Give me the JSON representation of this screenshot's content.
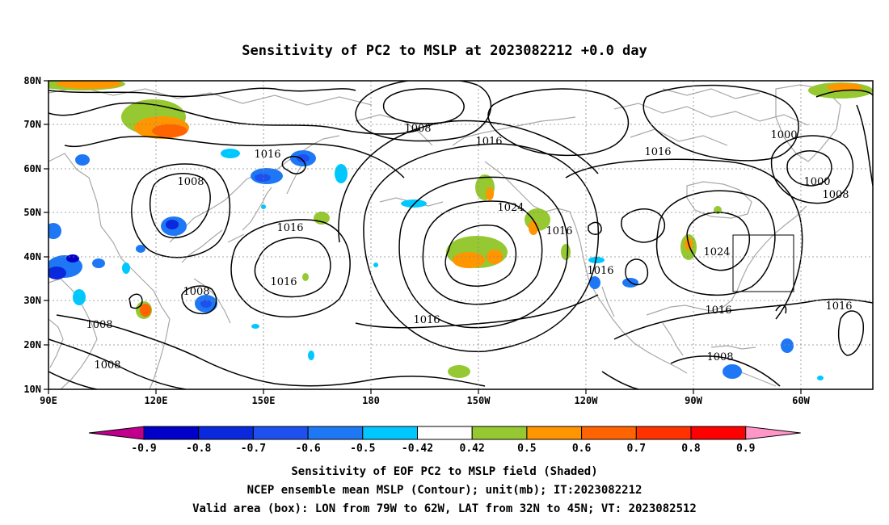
{
  "title": "Sensitivity of PC2 to MSLP at 2023082212 +0.0 day",
  "lat_labels": [
    "80N",
    "70N",
    "60N",
    "50N",
    "40N",
    "30N",
    "20N",
    "10N"
  ],
  "lon_labels": [
    "90E",
    "120E",
    "150E",
    "180",
    "150W",
    "120W",
    "90W",
    "60W"
  ],
  "contour_labels": [
    {
      "text": "1008"
    },
    {
      "text": "1016"
    },
    {
      "text": "1008"
    },
    {
      "text": "1016"
    },
    {
      "text": "1016"
    },
    {
      "text": "1024"
    },
    {
      "text": "1016"
    },
    {
      "text": "1016"
    },
    {
      "text": "1000"
    },
    {
      "text": "1000"
    },
    {
      "text": "1008"
    },
    {
      "text": "1024"
    },
    {
      "text": "1016"
    },
    {
      "text": "1016"
    },
    {
      "text": "1016"
    },
    {
      "text": "1008"
    },
    {
      "text": "1008"
    },
    {
      "text": "1008"
    },
    {
      "text": "1016"
    },
    {
      "text": "1016"
    },
    {
      "text": "1008"
    }
  ],
  "colorbar": {
    "levels": [
      "-0.9",
      "-0.8",
      "-0.7",
      "-0.6",
      "-0.5",
      "-0.42",
      "0.42",
      "0.5",
      "0.6",
      "0.7",
      "0.8",
      "0.9"
    ],
    "colors": [
      "#c0008c",
      "#0000c8",
      "#0a28dc",
      "#1e50f0",
      "#1e78f5",
      "#00c8ff",
      "#ffffff",
      "#96c832",
      "#ff9600",
      "#ff6400",
      "#ff3200",
      "#ff0000",
      "#ff96c8"
    ]
  },
  "caption": {
    "line1": "Sensitivity of EOF PC2 to MSLP field (Shaded)",
    "line2": "NCEP ensemble mean MSLP (Contour); unit(mb); IT:2023082212",
    "line3": "Valid area (box): LON from 79W to 62W, LAT from 32N to 45N; VT: 2023082512"
  }
}
